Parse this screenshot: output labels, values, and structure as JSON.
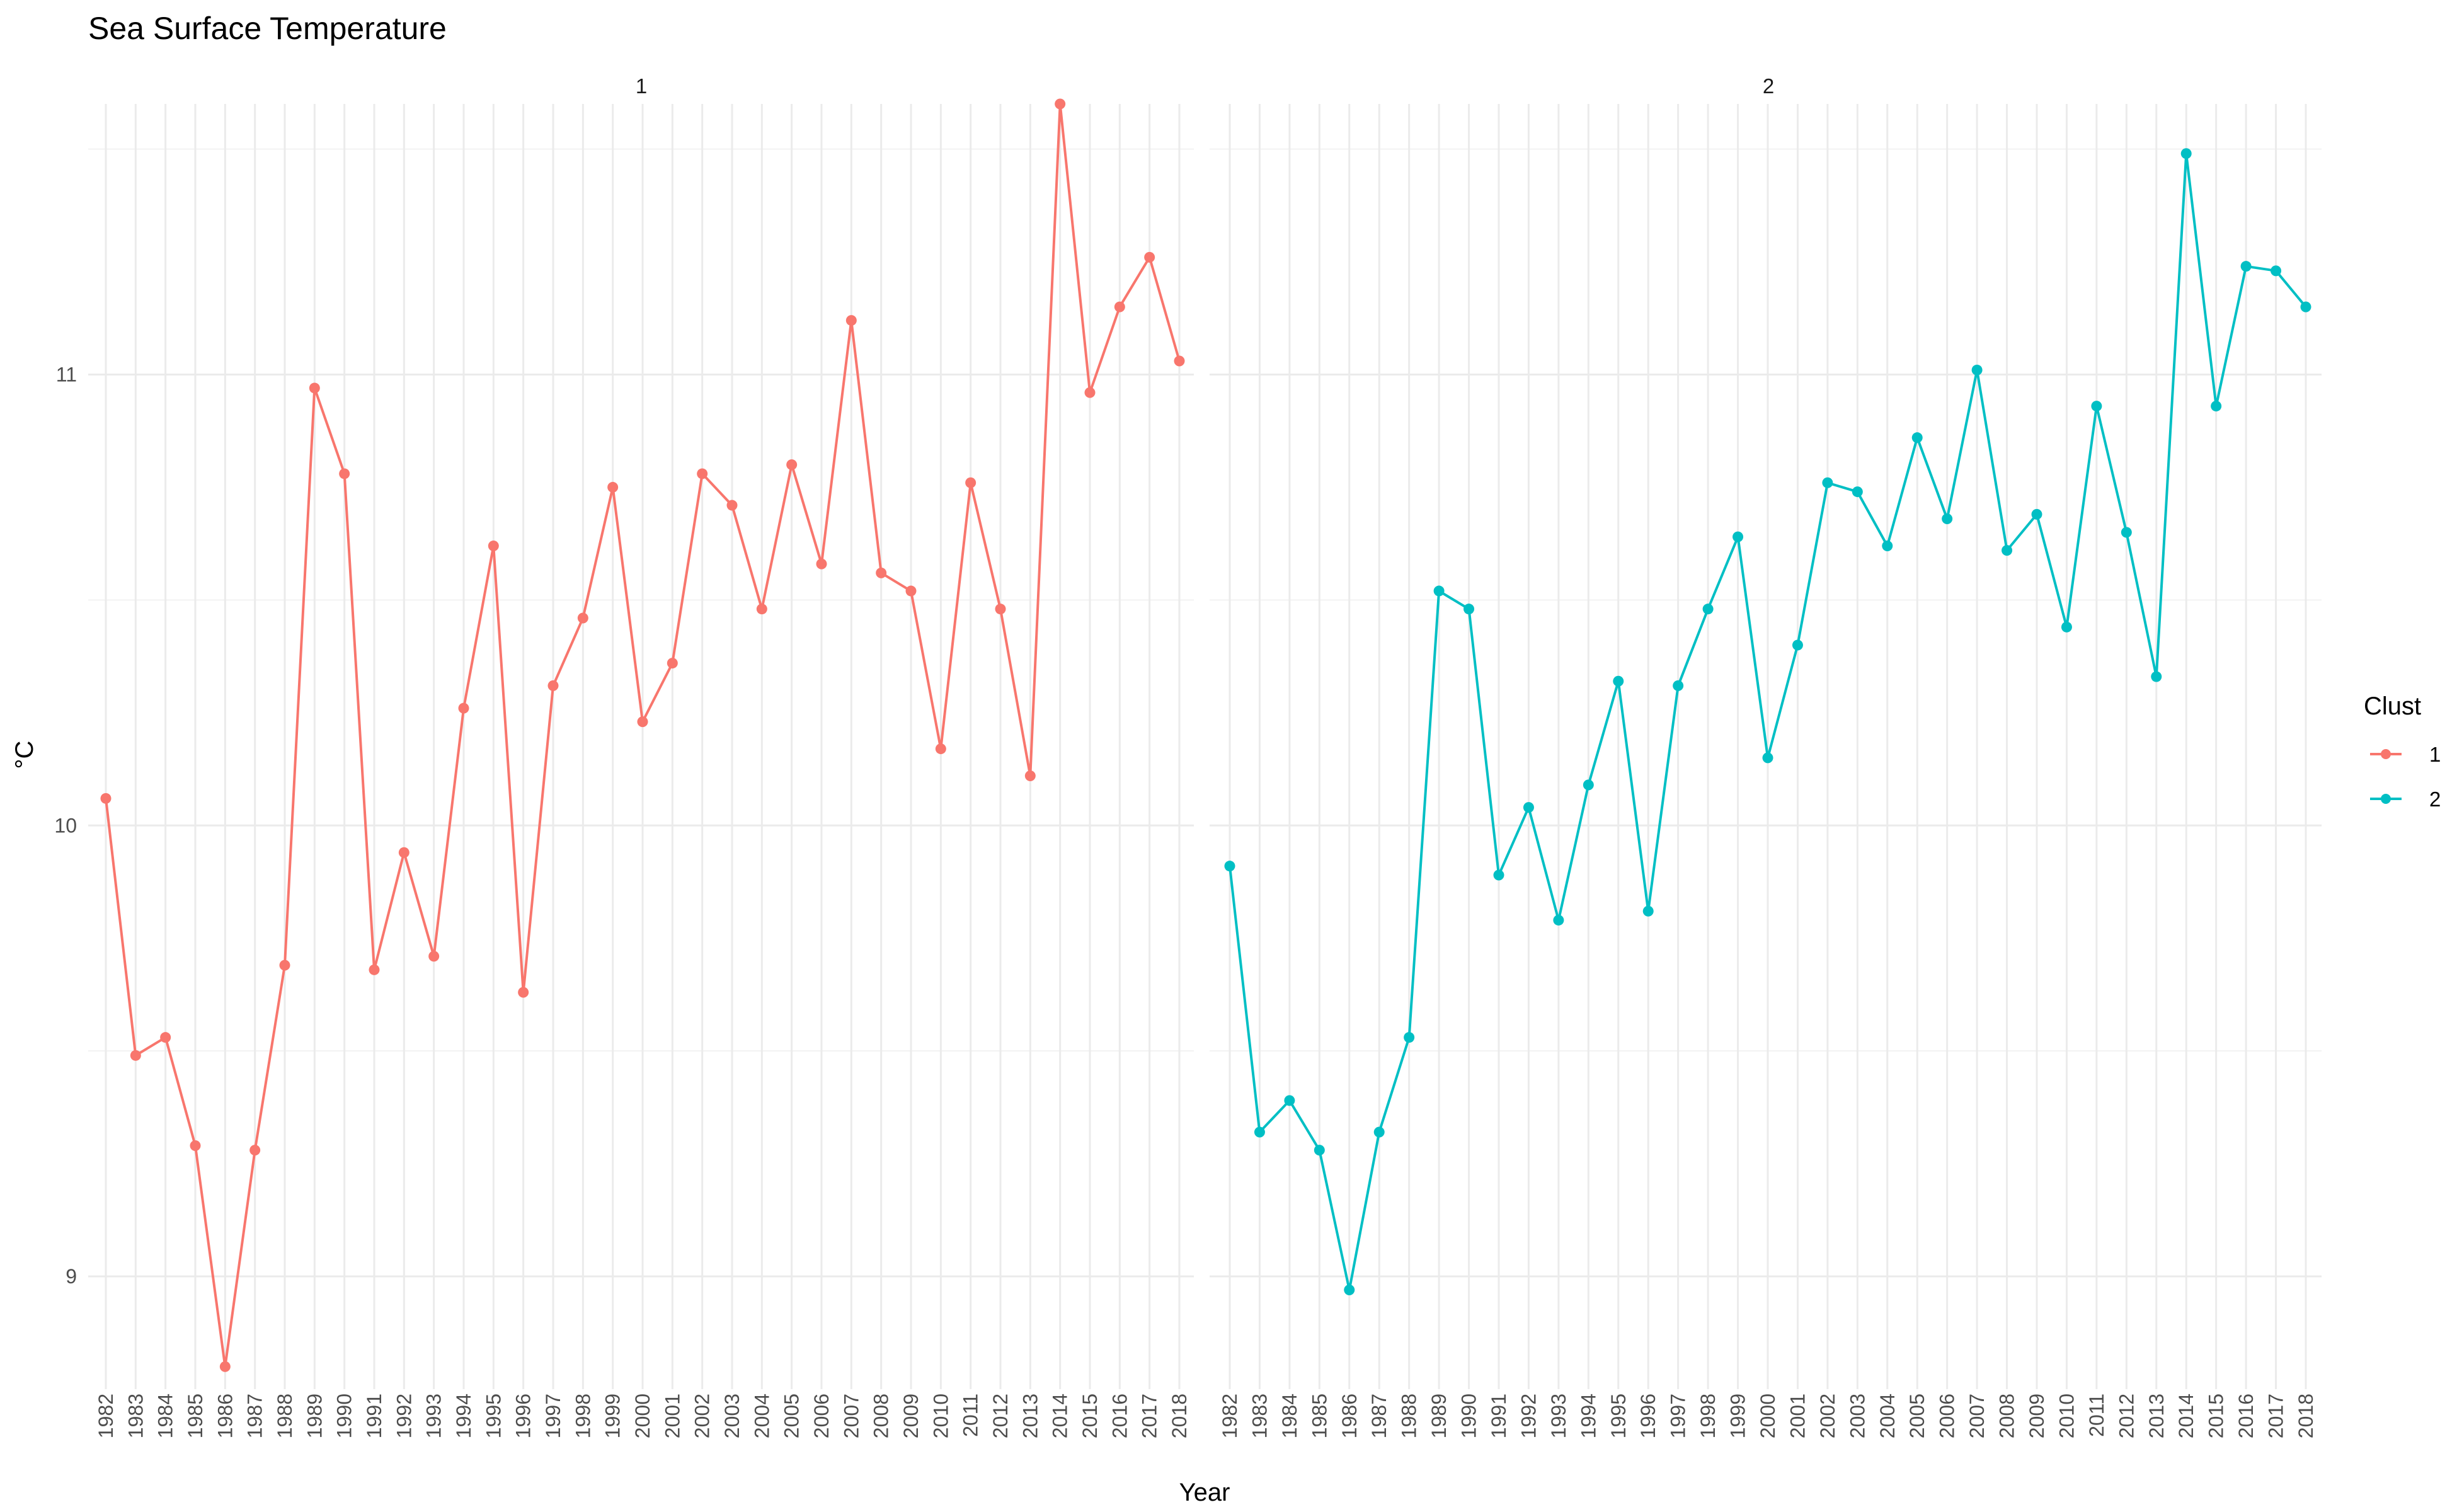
{
  "chart_data": {
    "type": "line",
    "title": "Sea Surface Temperature",
    "xlabel": "Year",
    "ylabel": "°C",
    "ylim": [
      8.75,
      11.6
    ],
    "yticks": [
      9,
      10,
      11
    ],
    "grid": true,
    "facets": [
      "1",
      "2"
    ],
    "x": [
      1982,
      1983,
      1984,
      1985,
      1986,
      1987,
      1988,
      1989,
      1990,
      1991,
      1992,
      1993,
      1994,
      1995,
      1996,
      1997,
      1998,
      1999,
      2000,
      2001,
      2002,
      2003,
      2004,
      2005,
      2006,
      2007,
      2008,
      2009,
      2010,
      2011,
      2012,
      2013,
      2014,
      2015,
      2016,
      2017,
      2018
    ],
    "legend": {
      "title": "Clust",
      "position": "right"
    },
    "series": [
      {
        "name": "1",
        "color": "#F8766D",
        "values": [
          10.06,
          9.49,
          9.53,
          9.29,
          8.8,
          9.28,
          9.69,
          10.97,
          10.78,
          9.68,
          9.94,
          9.71,
          10.26,
          10.62,
          9.63,
          10.31,
          10.46,
          10.75,
          10.23,
          10.36,
          10.78,
          10.71,
          10.48,
          10.8,
          10.58,
          11.12,
          10.56,
          10.52,
          10.17,
          10.76,
          10.48,
          10.11,
          11.6,
          10.96,
          11.15,
          11.26,
          11.03
        ]
      },
      {
        "name": "2",
        "color": "#00BFC4",
        "values": [
          9.91,
          9.32,
          9.39,
          9.28,
          8.97,
          9.32,
          9.53,
          10.52,
          10.48,
          9.89,
          10.04,
          9.79,
          10.09,
          10.32,
          9.81,
          10.31,
          10.48,
          10.64,
          10.15,
          10.4,
          10.76,
          10.74,
          10.62,
          10.86,
          10.68,
          11.01,
          10.61,
          10.69,
          10.44,
          10.93,
          10.65,
          10.33,
          11.49,
          10.93,
          11.24,
          11.23,
          11.15
        ]
      }
    ]
  }
}
